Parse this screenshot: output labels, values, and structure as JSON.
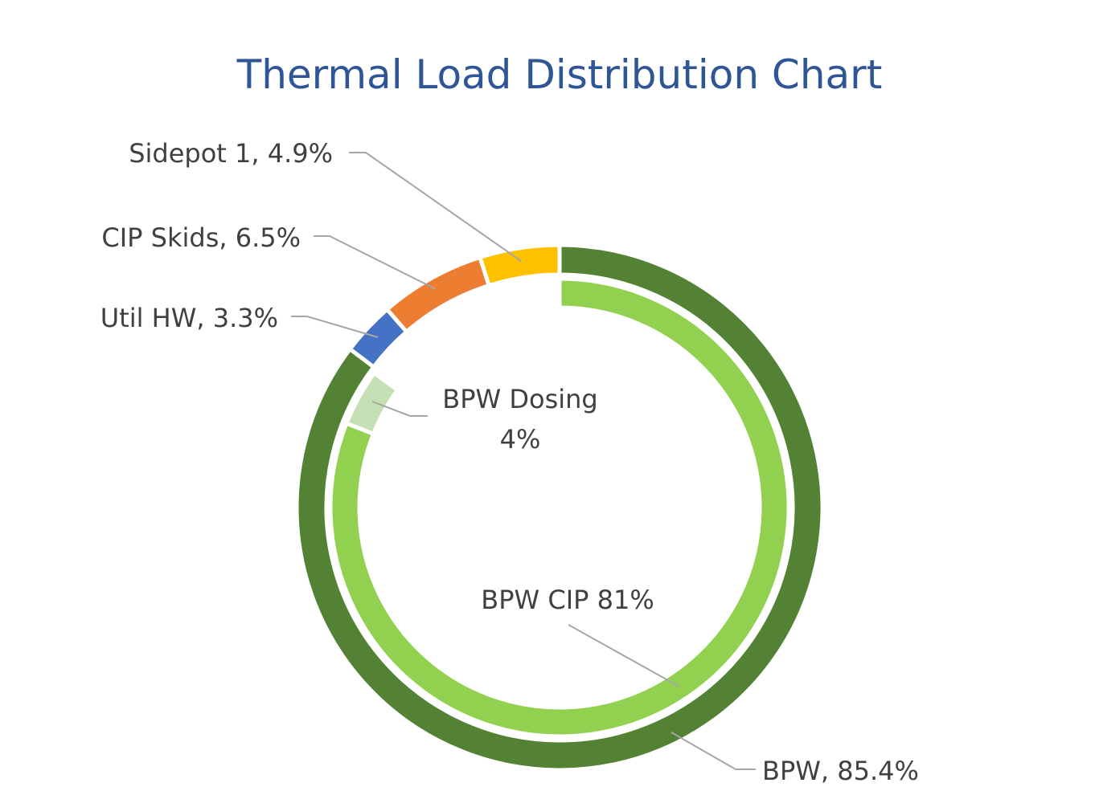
{
  "chart_data": {
    "type": "doughnut",
    "title": "Thermal Load Distribution Chart",
    "rings": [
      {
        "name": "outer",
        "slices": [
          {
            "label": "BPW",
            "value": 85.4,
            "display": "BPW, 85.4%",
            "color": "#548235"
          },
          {
            "label": "Util HW",
            "value": 3.3,
            "display": "Util HW, 3.3%",
            "color": "#4472C4"
          },
          {
            "label": "CIP Skids",
            "value": 6.5,
            "display": "CIP Skids, 6.5%",
            "color": "#ED7D31"
          },
          {
            "label": "Sidepot 1",
            "value": 4.9,
            "display": "Sidepot 1, 4.9%",
            "color": "#FFC000"
          }
        ]
      },
      {
        "name": "inner",
        "slices": [
          {
            "label": "BPW CIP",
            "value": 81,
            "display": "BPW CIP 81%",
            "color": "#92D050"
          },
          {
            "label": "BPW Dosing",
            "value": 4,
            "display_line1": "BPW Dosing",
            "display_line2": "4%",
            "color": "#C5E0B4"
          },
          {
            "label": "",
            "value": 15,
            "color": "#FFFFFF"
          }
        ]
      }
    ],
    "legend": "none",
    "title_color": "#2F5597",
    "label_color": "#404040"
  }
}
